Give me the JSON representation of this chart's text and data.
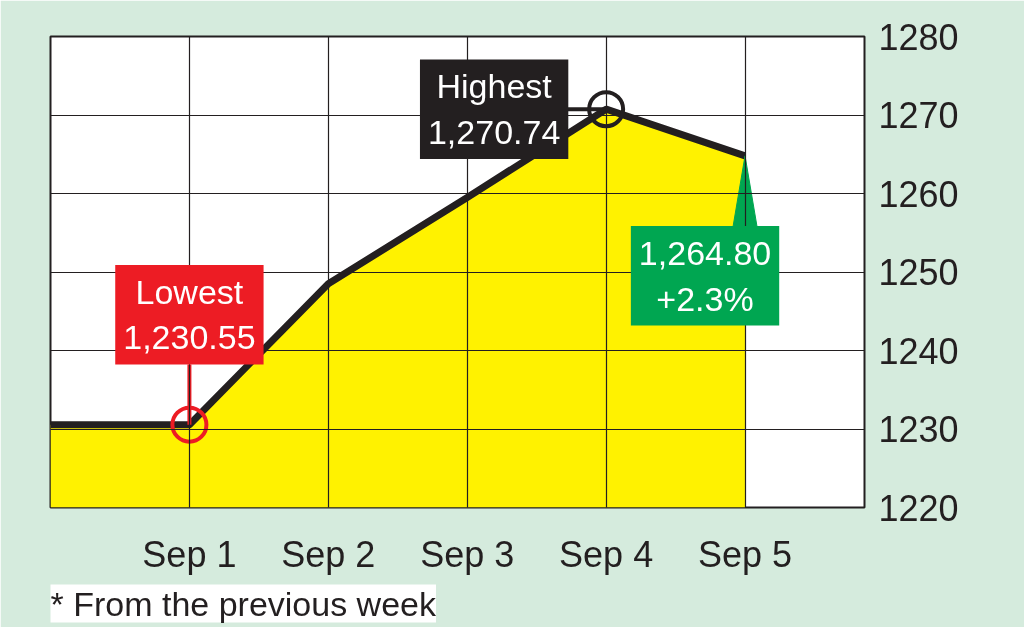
{
  "chart_data": {
    "type": "area",
    "categories": [
      null,
      "Sep 1",
      "Sep 2",
      "Sep 3",
      "Sep 4",
      "Sep 5"
    ],
    "ylim": [
      1220,
      1280
    ],
    "yticks": [
      1220,
      1230,
      1240,
      1250,
      1260,
      1270,
      1280
    ],
    "grid": true,
    "series": [
      {
        "color": "#fff200",
        "values": [
          1230.55,
          1230.55,
          1248.5,
          1259.5,
          1270.74,
          1264.8
        ]
      },
      {
        "type": "scatter",
        "marker": "circle",
        "color": "#ed1c24",
        "values": [
          null,
          1230.55,
          null,
          null,
          null,
          null
        ]
      },
      {
        "type": "scatter",
        "marker": "circle",
        "color": "#231f20",
        "values": [
          null,
          null,
          null,
          null,
          1270.74,
          null
        ]
      }
    ],
    "annotations": [
      {
        "text": "Lowest\n1,230.55",
        "x": "Sep 1",
        "y": 1230.55
      },
      {
        "text": "Highest\n1,270.74",
        "x": "Sep 4",
        "y": 1270.74
      },
      {
        "text": "1,264.80\n+2.3%",
        "x": "Sep 5",
        "y": 1264.8
      },
      "* From the previous week"
    ]
  }
}
